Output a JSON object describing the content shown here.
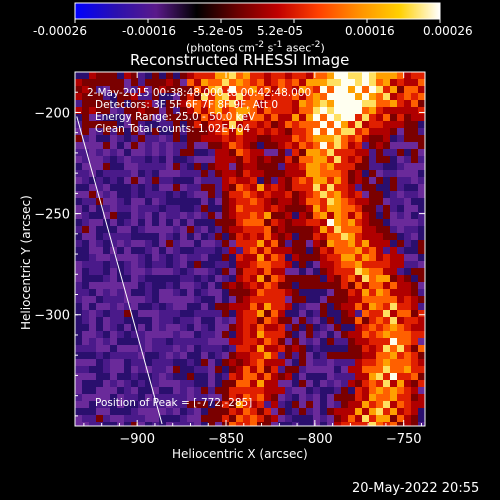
{
  "colorbar": {
    "ticks": [
      "-0.00026",
      "-0.00016",
      "-5.2e-05",
      "5.2e-05",
      "0.00016",
      "0.00026"
    ],
    "units_html": "(photons cm<sup>-2</sup> s<sup>-1</sup> asec<sup>-2</sup>)",
    "colors": [
      "#0000ff",
      "#2a10b0",
      "#5a1a8a",
      "#000000",
      "#6a0000",
      "#c00000",
      "#ff4000",
      "#ff9000",
      "#ffd000",
      "#ffffff"
    ]
  },
  "chart_data": {
    "type": "heatmap",
    "title": "Reconstructed RHESSI Image",
    "xlabel": "Heliocentric X (arcsec)",
    "ylabel": "Heliocentric Y (arcsec)",
    "xlim": [
      -935,
      -738
    ],
    "ylim": [
      -355,
      -180
    ],
    "x_ticks": [
      -900,
      -850,
      -800,
      -750
    ],
    "y_ticks": [
      -200,
      -250,
      -300
    ],
    "x_tick_labels": [
      "−900",
      "−850",
      "−800",
      "−750"
    ],
    "y_tick_labels": [
      "−200",
      "−250",
      "−300"
    ],
    "peak": [
      -772,
      -285
    ],
    "limb_line": [
      [
        -934,
        -202
      ],
      [
        -886,
        -354
      ]
    ]
  },
  "annotations": {
    "time_range": "2-May-2015 00:38:48.000 to 00:42:48.000",
    "detectors": "Detectors: 3F 5F 6F 7F 8F 9F, Att 0",
    "energy_range": "Energy Range: 25.0 - 50.0 keV",
    "clean_counts": "Clean     Total counts: 1.02E+04",
    "peak_position": "Position of Peak = [-772,-285]"
  },
  "timestamp": "20-May-2022 20:55"
}
